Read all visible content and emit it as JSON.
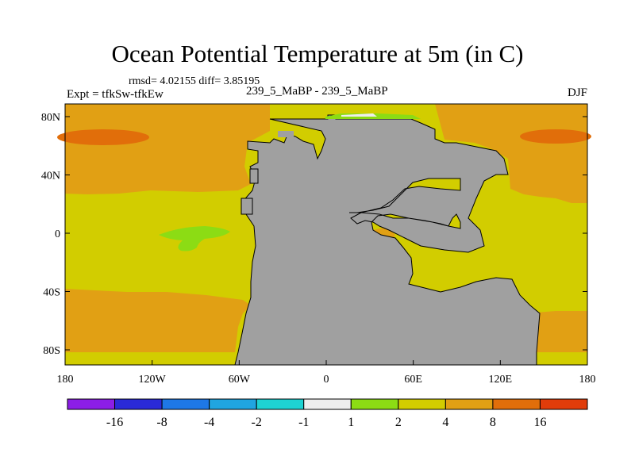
{
  "title": "Ocean Potential Temperature at 5m (in C)",
  "stats": "rmsd= 4.02155 diff= 3.85195",
  "expt": "Expt = tfkSw-tfkEw",
  "subtitle": "239_5_MaBP - 239_5_MaBP",
  "season": "DJF",
  "axes": {
    "x_ticks": [
      "180",
      "120W",
      "60W",
      "0",
      "60E",
      "120E",
      "180"
    ],
    "y_ticks": [
      "80N",
      "40N",
      "0",
      "40S",
      "80S"
    ]
  },
  "colorbar": {
    "colors": [
      "#8c1ee6",
      "#2a2ad8",
      "#1e78e6",
      "#20a5e0",
      "#1ed2d2",
      "#eeeeee",
      "#8cdc14",
      "#d2cd00",
      "#e1a014",
      "#e16e0a",
      "#e13c0a"
    ],
    "labels": [
      "-16",
      "-8",
      "-4",
      "-2",
      "-1",
      "1",
      "2",
      "4",
      "8",
      "16"
    ]
  },
  "legend": {
    "land": "#a0a0a0"
  }
}
